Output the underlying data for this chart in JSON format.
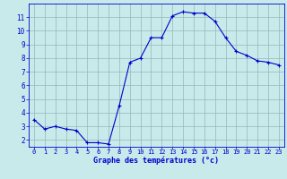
{
  "hours": [
    0,
    1,
    2,
    3,
    4,
    5,
    6,
    7,
    8,
    9,
    10,
    11,
    12,
    13,
    14,
    15,
    16,
    17,
    18,
    19,
    20,
    21,
    22,
    23
  ],
  "temps": [
    3.5,
    2.8,
    3.0,
    2.8,
    2.7,
    1.8,
    1.8,
    1.7,
    4.5,
    7.7,
    8.0,
    9.5,
    9.5,
    11.1,
    11.4,
    11.3,
    11.3,
    10.7,
    9.5,
    8.5,
    8.2,
    7.8,
    7.7,
    7.5
  ],
  "line_color": "#0000cc",
  "marker": "+",
  "bg_color": "#c8eaea",
  "grid_color": "#90b8b8",
  "xlabel": "Graphe des températures (°c)",
  "xlabel_color": "#0000cc",
  "tick_color": "#0000cc",
  "xlim": [
    -0.5,
    23.5
  ],
  "ylim": [
    1.5,
    12.0
  ],
  "yticks": [
    2,
    3,
    4,
    5,
    6,
    7,
    8,
    9,
    10,
    11
  ],
  "xticks": [
    0,
    1,
    2,
    3,
    4,
    5,
    6,
    7,
    8,
    9,
    10,
    11,
    12,
    13,
    14,
    15,
    16,
    17,
    18,
    19,
    20,
    21,
    22,
    23
  ]
}
